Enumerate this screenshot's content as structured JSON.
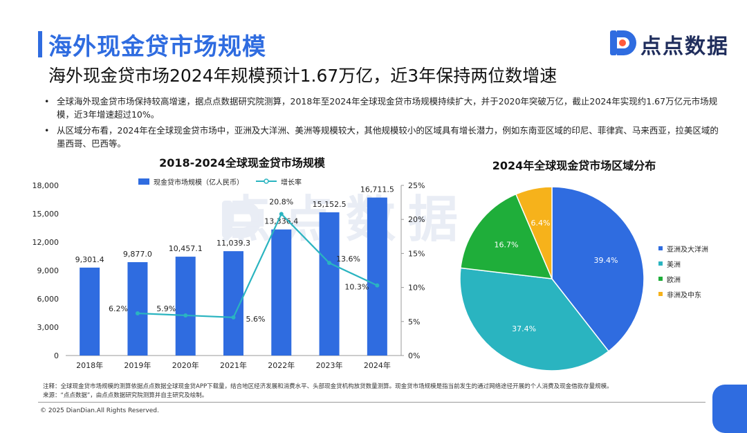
{
  "header": {
    "title": "海外现金贷市场规模",
    "subtitle": "海外现金贷市场2024年规模预计1.67万亿，近3年保持两位数增速",
    "brand": "点点数据"
  },
  "bullets": [
    "全球海外现金贷市场保持较高增速，据点点数据研究院测算，2018年至2024年全球现金贷市场规模持续扩大，并于2020年突破万亿，截止2024年实现约1.67万亿元市场规模，近3年增速超过10%。",
    "从区域分布看，2024年在全球现金贷市场中，亚洲及大洋洲、美洲等规模较大，其他规模较小的区域具有增长潜力，例如东南亚区域的印尼、菲律宾、马来西亚，拉美区域的墨西哥、巴西等。"
  ],
  "watermark": "点点数据",
  "chart_data": [
    {
      "type": "bar",
      "title": "2018-2024全球现金贷市场规模",
      "categories": [
        "2018年",
        "2019年",
        "2020年",
        "2021年",
        "2022年",
        "2023年",
        "2024年"
      ],
      "series": [
        {
          "name": "现金贷市场规模（亿人民币）",
          "type": "bar",
          "axis": "left",
          "color": "#2f6ce0",
          "values": [
            9301.4,
            9877.0,
            10457.1,
            11039.3,
            13336.4,
            15152.5,
            16711.5
          ],
          "labels": [
            "9,301.4",
            "9,877.0",
            "10,457.1",
            "11,039.3",
            "13,336.4",
            "15,152.5",
            "16,711.5"
          ]
        },
        {
          "name": "增长率",
          "type": "line",
          "axis": "right",
          "color": "#2ab4c0",
          "x": [
            "2019年",
            "2020年",
            "2021年",
            "2022年",
            "2023年",
            "2024年"
          ],
          "values": [
            6.2,
            5.9,
            5.6,
            20.8,
            13.6,
            10.3
          ],
          "labels": [
            "6.2%",
            "5.9%",
            "5.6%",
            "20.8%",
            "13.6%",
            "10.3%"
          ]
        }
      ],
      "y_left": {
        "ylim": [
          0,
          18000
        ],
        "ticks": [
          "0",
          "3,000",
          "6,000",
          "9,000",
          "12,000",
          "15,000",
          "18,000"
        ]
      },
      "y_right": {
        "ylim": [
          0,
          25
        ],
        "ticks": [
          "0%",
          "5%",
          "10%",
          "15%",
          "20%",
          "25%"
        ]
      },
      "legend_position": "top"
    },
    {
      "type": "pie",
      "title": "2024年全球现金贷市场区域分布",
      "slices": [
        {
          "name": "亚洲及大洋洲",
          "value": 39.4,
          "label": "39.4%",
          "color": "#2f6ce0"
        },
        {
          "name": "美洲",
          "value": 37.4,
          "label": "37.4%",
          "color": "#2ab4c0"
        },
        {
          "name": "欧洲",
          "value": 16.7,
          "label": "16.7%",
          "color": "#1fae3a"
        },
        {
          "name": "非洲及中东",
          "value": 6.4,
          "label": "6.4%",
          "color": "#f6b21b"
        }
      ],
      "legend_position": "right"
    }
  ],
  "footer": {
    "note": "注释：全球现金贷市场规模的测算依据点点数据全球现金贷APP下载量，结合地区经济发展和消费水平、头部现金贷机构放贷数量测算。现金贷市场规模是指当前发生的通过网络途径开展的个人消费及现金借款存量规模。",
    "source": "来源：“点点数据”，由点点数据研究院测算并自主研究及绘制。",
    "copyright": "© 2025 DianDian.All Rights Reserved."
  }
}
